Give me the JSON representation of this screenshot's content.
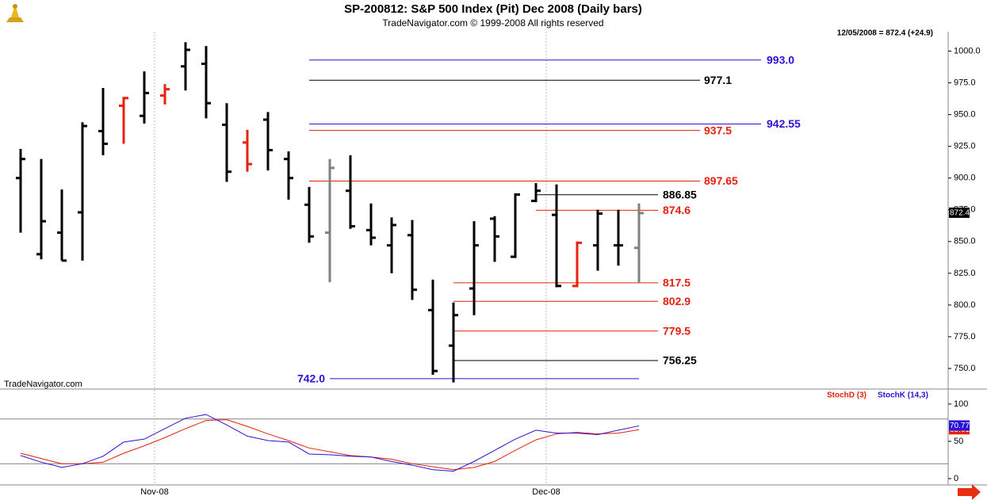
{
  "chart_data": [
    {
      "type": "ohlc",
      "title": "SP-200812:  S&P 500 Index (Pit) Dec 2008  (Daily bars)",
      "subtitle": "TradeNavigator.com © 1999-2008 All rights reserved",
      "annotations": [
        "12/05/2008 = 872.4 (+24.9)",
        "TradeNavigator.com"
      ],
      "categories": [
        null,
        null,
        null,
        null,
        null,
        null,
        null,
        "Nov-08",
        null,
        null,
        null,
        null,
        null,
        null,
        null,
        null,
        null,
        null,
        null,
        null,
        null,
        null,
        null,
        null,
        null,
        null,
        "Dec-08",
        null,
        null,
        null,
        null
      ],
      "open": [
        900,
        840,
        857,
        873,
        937,
        957,
        949,
        965,
        988,
        990,
        942,
        928,
        946,
        915,
        879,
        857,
        890,
        859,
        847,
        855,
        796,
        768,
        813,
        868,
        838,
        882,
        871,
        815,
        847,
        847,
        845
      ],
      "high": [
        923,
        915,
        891,
        944,
        971,
        964,
        984,
        974,
        1007,
        1004,
        959,
        938,
        952,
        921,
        893,
        915,
        918,
        880,
        869,
        867,
        820,
        802,
        866,
        870,
        888,
        896,
        895,
        850,
        875,
        875,
        880
      ],
      "low": [
        857,
        836,
        835,
        835,
        918,
        927,
        943,
        958,
        969,
        947,
        897,
        905,
        906,
        883,
        849,
        818,
        860,
        847,
        825,
        804,
        745,
        739,
        792,
        834,
        837,
        881,
        814,
        814,
        827,
        831,
        817
      ],
      "close": [
        915,
        866,
        835,
        941,
        927,
        963,
        967,
        970,
        1001,
        959,
        905,
        911,
        922,
        900,
        854,
        908,
        862,
        853,
        863,
        812,
        748,
        792,
        847,
        854,
        887,
        890,
        815,
        849,
        872,
        847,
        872.4
      ],
      "bar_colors": [
        "#000",
        "#000",
        "#000",
        "#000",
        "#000",
        "#e8200c",
        "#000",
        "#e8200c",
        "#000",
        "#000",
        "#000",
        "#e8200c",
        "#000",
        "#000",
        "#000",
        "#808080",
        "#000",
        "#000",
        "#000",
        "#000",
        "#000",
        "#000",
        "#000",
        "#000",
        "#000",
        "#000",
        "#000",
        "#e8200c",
        "#000",
        "#000",
        "#808080"
      ],
      "ylim": [
        734.4,
        1015.3
      ],
      "yticks": [
        {
          "value": 750,
          "label": "750.0"
        },
        {
          "value": 775,
          "label": "775.0"
        },
        {
          "value": 800,
          "label": "800.0"
        },
        {
          "value": 825,
          "label": "825.0"
        },
        {
          "value": 850,
          "label": "850.0"
        },
        {
          "value": 875,
          "label": "875.0"
        },
        {
          "value": 900,
          "label": "900.0"
        },
        {
          "value": 925,
          "label": "925.0"
        },
        {
          "value": 950,
          "label": "950.0"
        },
        {
          "value": 975,
          "label": "975.0"
        },
        {
          "value": 1000,
          "label": "1000.0"
        }
      ],
      "levels": [
        {
          "value": 993,
          "label": "993.0",
          "color": "#2a12d8"
        },
        {
          "value": 977.1,
          "label": "977.1",
          "color": "#000"
        },
        {
          "value": 942.55,
          "label": "942.55",
          "color": "#2a12d8"
        },
        {
          "value": 937.5,
          "label": "937.5",
          "color": "#e8200c"
        },
        {
          "value": 897.65,
          "label": "897.65",
          "color": "#e8200c"
        },
        {
          "value": 886.85,
          "label": "886.85",
          "color": "#000"
        },
        {
          "value": 874.6,
          "label": "874.6",
          "color": "#e8200c"
        },
        {
          "value": 817.5,
          "label": "817.5",
          "color": "#e8200c"
        },
        {
          "value": 802.9,
          "label": "802.9",
          "color": "#e8200c"
        },
        {
          "value": 779.5,
          "label": "779.5",
          "color": "#e8200c"
        },
        {
          "value": 756.25,
          "label": "756.25",
          "color": "#000"
        },
        {
          "value": 742,
          "label": "742.0",
          "color": "#2a12d8"
        }
      ],
      "last_price": 872.4
    },
    {
      "type": "line",
      "series": [
        {
          "name": "StochD (3)",
          "color": "#e8200c",
          "values": [
            34,
            27,
            20,
            20,
            22,
            34,
            44,
            55,
            67,
            78,
            79,
            70,
            60,
            51,
            41,
            36,
            31,
            29,
            26,
            20,
            16,
            12,
            15,
            23,
            38,
            52,
            60,
            62,
            60,
            61,
            65.61
          ]
        },
        {
          "name": "StochK (14,3)",
          "color": "#2a12d8",
          "values": [
            31,
            22,
            15,
            20,
            30,
            49,
            53,
            67,
            81,
            86,
            72,
            57,
            51,
            49,
            33,
            32,
            30,
            29,
            23,
            18,
            12,
            10,
            23,
            38,
            53,
            65,
            61,
            61,
            59,
            65,
            70.77
          ]
        }
      ],
      "ylim": [
        -8.5,
        118
      ],
      "yticks": [
        0,
        50,
        100
      ],
      "bands": [
        20,
        80
      ]
    }
  ]
}
